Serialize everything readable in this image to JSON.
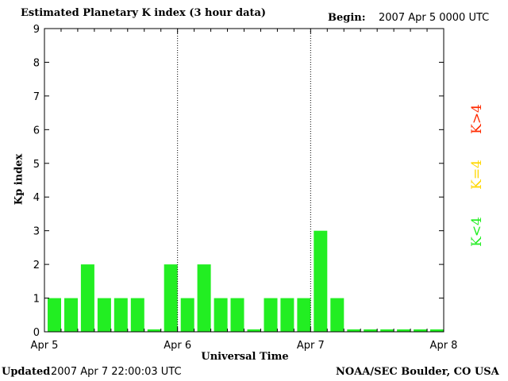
{
  "header": {
    "title": "Estimated Planetary K index (3 hour data)",
    "begin_label": "Begin:",
    "begin_value": "2007 Apr 5 0000 UTC"
  },
  "footer": {
    "updated_label": "Updated",
    "updated_value": "2007 Apr  7 22:00:03 UTC",
    "credit": "NOAA/SEC Boulder, CO USA"
  },
  "legend": {
    "items": [
      {
        "label": "K>4",
        "color": "#ff2a00"
      },
      {
        "label": "K=4",
        "color": "#ffd700"
      },
      {
        "label": "K<4",
        "color": "#22ee22"
      }
    ]
  },
  "chart_data": {
    "type": "bar",
    "title": "Estimated Planetary K index (3 hour data)",
    "xlabel": "Universal Time",
    "ylabel": "Kp index",
    "ylim": [
      0,
      9
    ],
    "yticks": [
      0,
      1,
      2,
      3,
      4,
      5,
      6,
      7,
      8,
      9
    ],
    "xticks": [
      "Apr 5",
      "Apr 6",
      "Apr 7",
      "Apr 8"
    ],
    "x_interval_hours": 3,
    "day_separators": [
      "Apr 6",
      "Apr 7"
    ],
    "bar_color": "#22ee22",
    "categories": [
      "Apr 5 00",
      "Apr 5 03",
      "Apr 5 06",
      "Apr 5 09",
      "Apr 5 12",
      "Apr 5 15",
      "Apr 5 18",
      "Apr 5 21",
      "Apr 6 00",
      "Apr 6 03",
      "Apr 6 06",
      "Apr 6 09",
      "Apr 6 12",
      "Apr 6 15",
      "Apr 6 18",
      "Apr 6 21",
      "Apr 7 00",
      "Apr 7 03",
      "Apr 7 06",
      "Apr 7 09",
      "Apr 7 12",
      "Apr 7 15",
      "Apr 7 18",
      "Apr 7 21"
    ],
    "values": [
      1,
      1,
      2,
      1,
      1,
      1,
      0,
      2,
      1,
      2,
      1,
      1,
      0,
      1,
      1,
      1,
      3,
      1,
      0,
      0,
      0,
      0,
      0,
      0
    ]
  }
}
